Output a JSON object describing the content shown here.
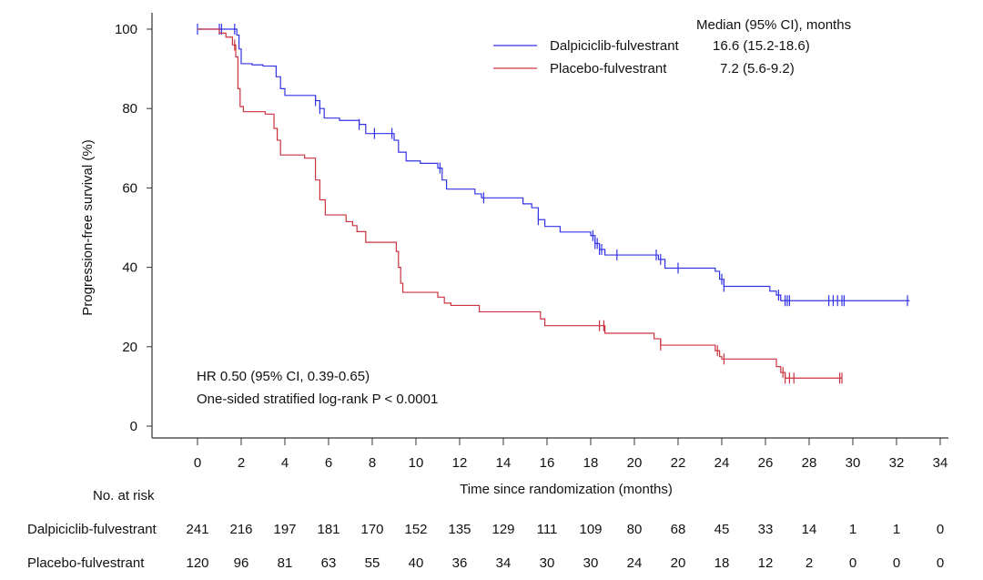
{
  "chart_data": {
    "type": "line",
    "subtype": "kaplan-meier",
    "title": "",
    "xlabel": "Time since randomization (months)",
    "ylabel": "Progression-free survival (%)",
    "xlim": [
      0,
      34
    ],
    "ylim": [
      0,
      100
    ],
    "x_ticks": [
      0,
      2,
      4,
      6,
      8,
      10,
      12,
      14,
      16,
      18,
      20,
      22,
      24,
      26,
      28,
      30,
      32,
      34
    ],
    "y_ticks": [
      0,
      20,
      40,
      60,
      80,
      100
    ],
    "grid": false,
    "legend_placement": "top-right",
    "legend_header": "Median (95% CI), months",
    "series": [
      {
        "name": "Dalpiciclib-fulvestrant",
        "median": "16.6 (15.2-18.6)",
        "color": "#3333e6",
        "steps": [
          [
            0,
            100
          ],
          [
            1.8,
            98.5
          ],
          [
            1.9,
            95
          ],
          [
            2.0,
            91.3
          ],
          [
            2.5,
            91
          ],
          [
            3.0,
            90.7
          ],
          [
            3.6,
            88
          ],
          [
            3.8,
            85
          ],
          [
            4.0,
            83.3
          ],
          [
            5.4,
            82
          ],
          [
            5.6,
            80
          ],
          [
            5.8,
            77.6
          ],
          [
            6.5,
            77
          ],
          [
            7.4,
            76
          ],
          [
            7.7,
            73.7
          ],
          [
            8.0,
            73.7
          ],
          [
            9.0,
            72
          ],
          [
            9.2,
            69
          ],
          [
            9.55,
            66.8
          ],
          [
            10.2,
            66.2
          ],
          [
            11.0,
            65
          ],
          [
            11.2,
            62
          ],
          [
            11.4,
            59.7
          ],
          [
            12.7,
            58.5
          ],
          [
            13.0,
            57.5
          ],
          [
            14.9,
            56
          ],
          [
            15.3,
            55
          ],
          [
            15.6,
            52
          ],
          [
            15.9,
            50.3
          ],
          [
            16.6,
            48.9
          ],
          [
            18.0,
            48
          ],
          [
            18.2,
            46
          ],
          [
            18.4,
            44.5
          ],
          [
            18.65,
            43.1
          ],
          [
            21.1,
            42
          ],
          [
            21.4,
            39.8
          ],
          [
            23.7,
            39
          ],
          [
            23.9,
            37
          ],
          [
            24.1,
            35.2
          ],
          [
            26.2,
            34
          ],
          [
            26.5,
            33
          ],
          [
            26.7,
            31.6
          ],
          [
            32.6,
            31.6
          ]
        ],
        "censored": [
          0,
          1.0,
          1.1,
          1.7,
          5.4,
          5.6,
          7.4,
          8.1,
          8.9,
          11.1,
          13.1,
          15.6,
          18.1,
          18.2,
          18.3,
          18.4,
          18.5,
          19.2,
          21.0,
          21.2,
          22.0,
          24.0,
          24.1,
          26.6,
          26.9,
          27.0,
          27.1,
          28.9,
          29.1,
          29.3,
          29.5,
          29.6,
          32.5
        ],
        "at_risk": [
          241,
          216,
          197,
          181,
          170,
          152,
          135,
          129,
          111,
          109,
          80,
          68,
          45,
          33,
          14,
          1,
          1,
          0
        ]
      },
      {
        "name": "Placebo-fulvestrant",
        "median": "7.2 (5.6-9.2)",
        "color": "#cc3340",
        "steps": [
          [
            0,
            100
          ],
          [
            1.0,
            99
          ],
          [
            1.3,
            98
          ],
          [
            1.6,
            96
          ],
          [
            1.75,
            93
          ],
          [
            1.85,
            85
          ],
          [
            1.95,
            80.5
          ],
          [
            2.1,
            79.2
          ],
          [
            3.1,
            78.6
          ],
          [
            3.5,
            75
          ],
          [
            3.65,
            72
          ],
          [
            3.8,
            68.3
          ],
          [
            4.9,
            67.5
          ],
          [
            5.4,
            62
          ],
          [
            5.6,
            57
          ],
          [
            5.85,
            53.2
          ],
          [
            6.8,
            51.5
          ],
          [
            7.1,
            50.5
          ],
          [
            7.3,
            49
          ],
          [
            7.7,
            46.3
          ],
          [
            9.1,
            44
          ],
          [
            9.2,
            40
          ],
          [
            9.3,
            36
          ],
          [
            9.4,
            33.7
          ],
          [
            11.0,
            32.5
          ],
          [
            11.3,
            31
          ],
          [
            11.6,
            30.4
          ],
          [
            12.9,
            28.8
          ],
          [
            15.7,
            27
          ],
          [
            15.9,
            25.3
          ],
          [
            18.65,
            23.4
          ],
          [
            20.9,
            22
          ],
          [
            21.2,
            20.4
          ],
          [
            23.7,
            19
          ],
          [
            23.9,
            17.5
          ],
          [
            24.0,
            16.9
          ],
          [
            26.5,
            15
          ],
          [
            26.7,
            13.5
          ],
          [
            26.9,
            12.1
          ],
          [
            29.5,
            12.1
          ]
        ],
        "censored": [
          1.7,
          18.4,
          18.6,
          21.2,
          23.8,
          24.1,
          26.8,
          26.9,
          27.1,
          27.3,
          29.4,
          29.5
        ],
        "at_risk": [
          120,
          96,
          81,
          63,
          55,
          40,
          36,
          34,
          30,
          30,
          24,
          20,
          18,
          12,
          2,
          0,
          0,
          0
        ]
      }
    ],
    "annotations": [
      "HR 0.50 (95% CI, 0.39-0.65)",
      "One-sided stratified log-rank P < 0.0001"
    ],
    "risk_table_title": "No. at risk"
  }
}
